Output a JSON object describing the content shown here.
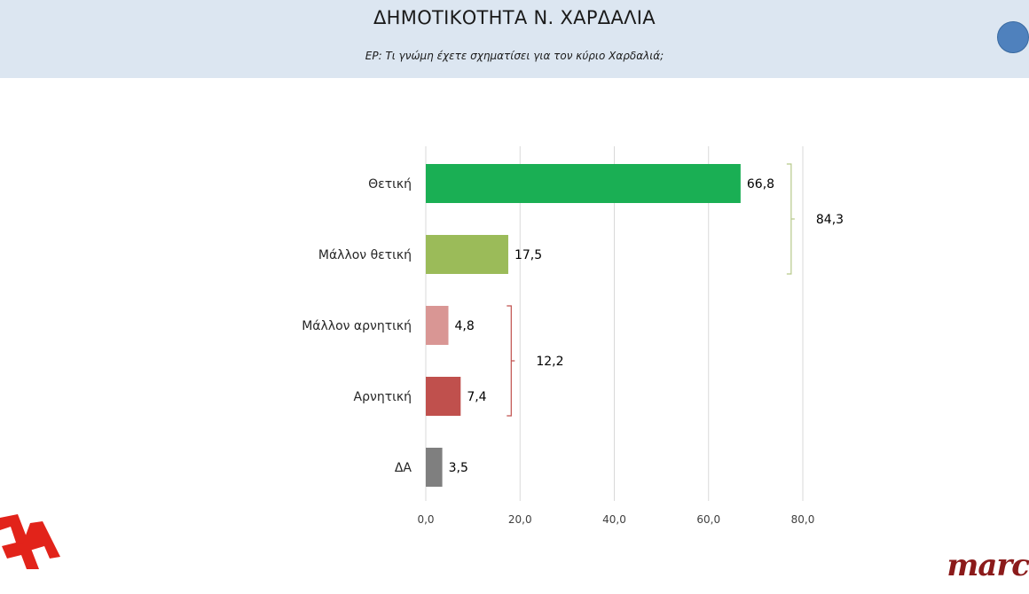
{
  "header": {
    "title": "ΔΗΜΟΤΙΚΟΤΗΤΑ Ν. ΧΑΡΔΑΛΙΑ",
    "subtitle": "ΕΡ: Τι γνώμη έχετε σχηματίσει για τον κύριο Χαρδαλιά;"
  },
  "logos": {
    "left": "Α",
    "right": "marc"
  },
  "colors": {
    "header_bg": "#dce6f1",
    "dot": "#4f81bd",
    "positive_bracket": "#b7c98a",
    "negative_bracket": "#c0504d",
    "gridline": "#d9d9d9"
  },
  "chart_data": {
    "type": "bar",
    "orientation": "horizontal",
    "title": "ΔΗΜΟΤΙΚΟΤΗΤΑ Ν. ΧΑΡΔΑΛΙΑ",
    "categories": [
      "Θετική",
      "Μάλλον θετική",
      "Μάλλον αρνητική",
      "Αρνητική",
      "ΔΑ"
    ],
    "values": [
      66.8,
      17.5,
      4.8,
      7.4,
      3.5
    ],
    "value_labels": [
      "66,8",
      "17,5",
      "4,8",
      "7,4",
      "3,5"
    ],
    "bar_colors": [
      "#1aaf54",
      "#9bbb59",
      "#d99694",
      "#c0504d",
      "#7f7f7f"
    ],
    "xlim": [
      0,
      80
    ],
    "x_ticks": [
      0,
      20,
      40,
      60,
      80
    ],
    "x_tick_labels": [
      "0,0",
      "20,0",
      "40,0",
      "60,0",
      "80,0"
    ],
    "grid": true,
    "legend": "none",
    "groups": [
      {
        "categories": [
          "Θετική",
          "Μάλλον θετική"
        ],
        "value": 84.3,
        "label": "84,3",
        "color": "#b7c98a"
      },
      {
        "categories": [
          "Μάλλον αρνητική",
          "Αρνητική"
        ],
        "value": 12.2,
        "label": "12,2",
        "color": "#c0504d"
      }
    ]
  }
}
